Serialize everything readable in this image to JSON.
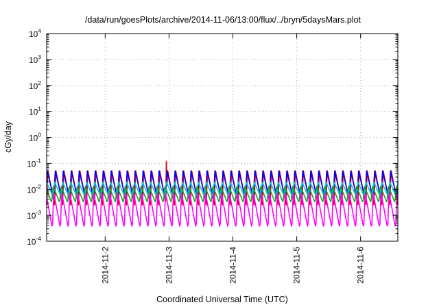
{
  "chart_data": {
    "type": "line",
    "title": "/data/run/goesPlots/archive/2014-11-06/13:00/flux/../bryn/5daysMars.plot",
    "xlabel": "Coordinated Universal Time (UTC)",
    "ylabel": "cGy/day",
    "yscale": "log",
    "ylim": [
      0.0001,
      10000
    ],
    "y_ticks": [
      {
        "base": "10",
        "exp": "-4"
      },
      {
        "base": "10",
        "exp": "-3"
      },
      {
        "base": "10",
        "exp": "-2"
      },
      {
        "base": "10",
        "exp": "-1"
      },
      {
        "base": "10",
        "exp": "0"
      },
      {
        "base": "10",
        "exp": "1"
      },
      {
        "base": "10",
        "exp": "2"
      },
      {
        "base": "10",
        "exp": "3"
      },
      {
        "base": "10",
        "exp": "4"
      }
    ],
    "xlim": [
      "2014-11-01 02:00",
      "2014-11-06 14:00"
    ],
    "x_ticks": [
      "2014-11-2",
      "2014-11-3",
      "2014-11-4",
      "2014-11-5",
      "2014-11-6"
    ],
    "x_tick_dates": [
      "2014-11-02 00:00",
      "2014-11-03 00:00",
      "2014-11-04 00:00",
      "2014-11-05 00:00",
      "2014-11-06 00:00"
    ],
    "grid": true,
    "legend": "none",
    "series": [
      {
        "color": "#e00000",
        "peak": 0.055,
        "trough": 0.0025,
        "spike_at": "2014-11-02 23:00",
        "spike_value": 0.12
      },
      {
        "color": "#0000ff",
        "peak": 0.055,
        "trough": 0.004
      },
      {
        "color": "#00c8d8",
        "peak": 0.02,
        "trough": 0.005
      },
      {
        "color": "#ff00ff",
        "peak": 0.008,
        "trough": 0.0003
      },
      {
        "color": "#20a020",
        "peak": 0.014,
        "trough": 0.003
      }
    ],
    "oscillation_period_hours": 3
  }
}
